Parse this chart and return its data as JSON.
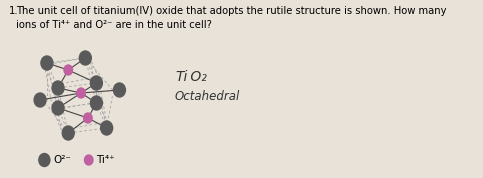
{
  "question_number": "1.",
  "question_text": "The unit cell of titanium(IV) oxide that adopts the rutile structure is shown. How many\nions of Ti⁴⁺ and O²⁻ are in the unit cell?",
  "answer_formula_ti": "Ti",
  "answer_formula_o": " O₂",
  "answer_label2": "Octahedral",
  "legend_o": "O²⁻",
  "legend_ti": "Ti⁴⁺",
  "bg_color": "#e8e2d8",
  "o_color": "#5a5a5a",
  "ti_color": "#c060a0",
  "bond_color": "#444444",
  "dashed_color": "#aaaaaa"
}
